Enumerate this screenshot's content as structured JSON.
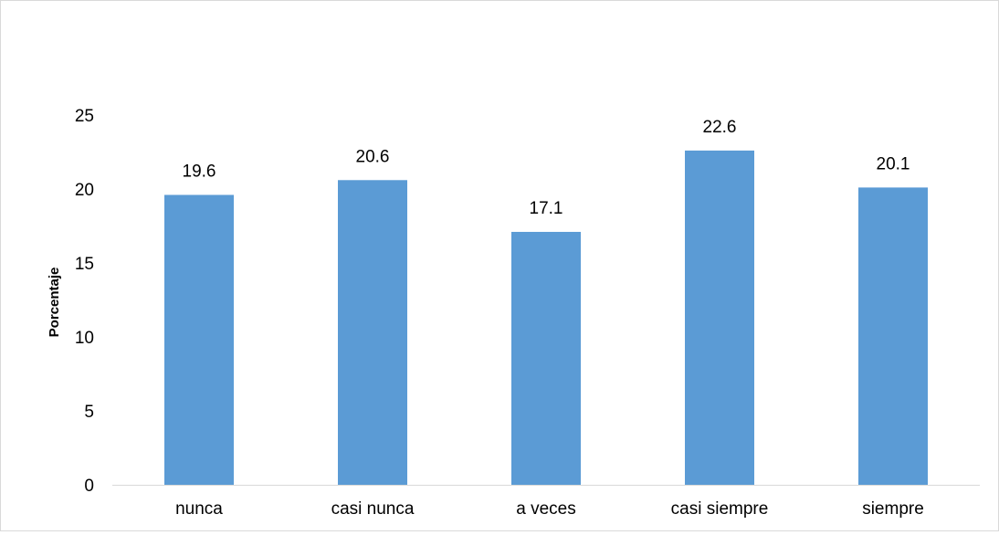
{
  "chart_data": {
    "type": "bar",
    "title": "",
    "xlabel": "",
    "ylabel": "Porcentaje",
    "categories": [
      "nunca",
      "casi nunca",
      "a veces",
      "casi siempre",
      "siempre"
    ],
    "values": [
      19.6,
      20.6,
      17.1,
      22.6,
      20.1
    ],
    "value_labels": [
      "19.6",
      "20.6",
      "17.1",
      "22.6",
      "20.1"
    ],
    "ylim": [
      0,
      25
    ],
    "yticks": [
      0,
      5,
      10,
      15,
      20,
      25
    ],
    "ytick_labels": [
      "0",
      "5",
      "10",
      "15",
      "20",
      "25"
    ],
    "grid": false,
    "legend": "none",
    "colors": {
      "bar": "#5b9bd5",
      "axis": "#d9d9d9",
      "text": "#000000",
      "border": "#d9d9d9"
    }
  }
}
